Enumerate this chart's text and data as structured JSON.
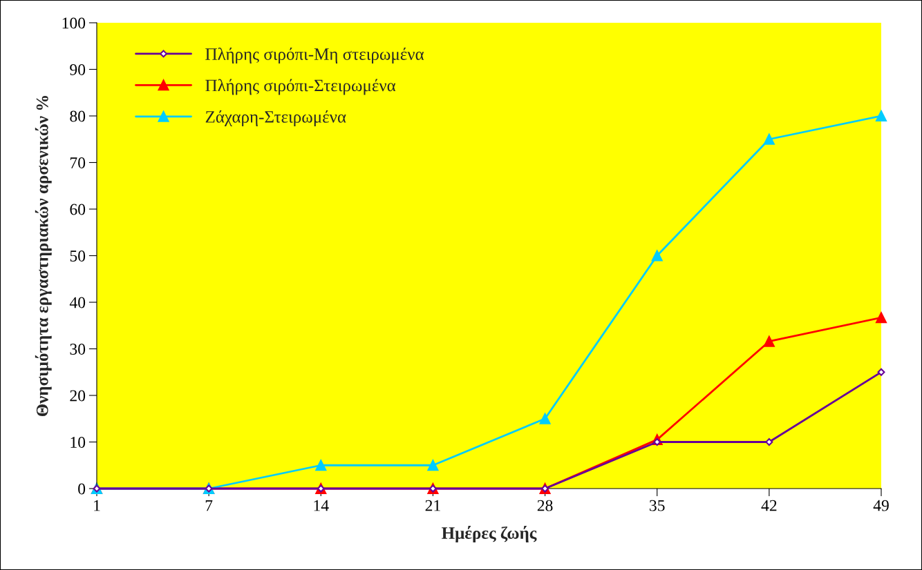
{
  "chart_data": {
    "type": "line",
    "xlabel": "Ημέρες ζωής",
    "ylabel": "Θνησιμότητα εργαστηριακών αρσενικών %",
    "categories": [
      "1",
      "7",
      "14",
      "21",
      "28",
      "35",
      "42",
      "49"
    ],
    "series": [
      {
        "name": "Πλήρης σιρόπι-Μη στειρωμένα",
        "color": "#660099",
        "marker": "diamond",
        "values": [
          0,
          0,
          0,
          0,
          0,
          10,
          10,
          25
        ]
      },
      {
        "name": "Πλήρης σιρόπι-Στειρωμένα",
        "color": "#ff0000",
        "marker": "triangle",
        "values": [
          0,
          0,
          0,
          0,
          0,
          10.5,
          31.6,
          36.7
        ]
      },
      {
        "name": "Ζάχαρη-Στειρωμένα",
        "color": "#00ccff",
        "marker": "triangle",
        "values": [
          0,
          0,
          5,
          5,
          15,
          50,
          75,
          80
        ]
      }
    ],
    "ylim": [
      0,
      100
    ],
    "yticks": [
      0,
      10,
      20,
      30,
      40,
      50,
      60,
      70,
      80,
      90,
      100
    ],
    "grid": false,
    "legend": "top left"
  }
}
